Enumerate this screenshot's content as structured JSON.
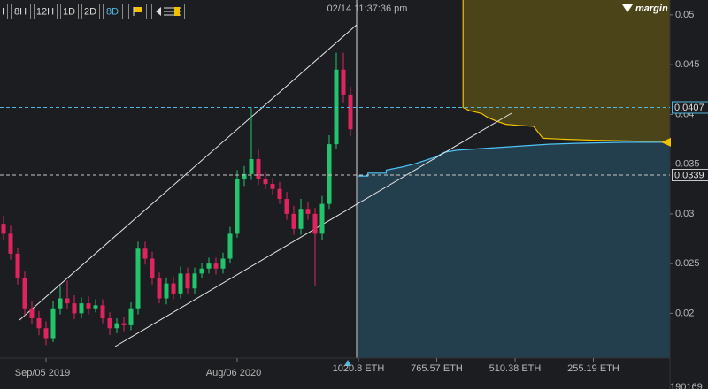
{
  "header": {
    "timestamp": "02/14 11:37:36 pm",
    "brand": "margin"
  },
  "toolbar": {
    "buttons": [
      {
        "label": "H"
      },
      {
        "label": "8H"
      },
      {
        "label": "12H"
      },
      {
        "label": "1D"
      },
      {
        "label": "2D"
      },
      {
        "label": "8D",
        "active": true
      }
    ]
  },
  "footer_value": "190169",
  "chart_data": [
    {
      "type": "candlestick",
      "categories": [
        null,
        null,
        null,
        null,
        null,
        null,
        "Sep/05 2019",
        null,
        null,
        null,
        null,
        null,
        null,
        null,
        null,
        null,
        null,
        null,
        null,
        null,
        null,
        null,
        null,
        null,
        null,
        null,
        null,
        null,
        null,
        null,
        null,
        null,
        null,
        "Aug/06 2020",
        null,
        null,
        null,
        null,
        null,
        null,
        null,
        null,
        null,
        null,
        null,
        null,
        null,
        null,
        null,
        null
      ],
      "open": [
        0.029,
        0.028,
        0.026,
        0.0235,
        0.0205,
        0.0195,
        0.0185,
        0.0175,
        0.0205,
        0.0215,
        0.021,
        0.02,
        0.021,
        0.0205,
        0.0208,
        0.0195,
        0.0185,
        0.019,
        0.0188,
        0.0205,
        0.0265,
        0.0255,
        0.0235,
        0.0215,
        0.023,
        0.022,
        0.024,
        0.0225,
        0.024,
        0.0245,
        0.025,
        0.0245,
        0.0255,
        0.028,
        0.0335,
        0.034,
        0.0355,
        0.0335,
        0.033,
        0.0325,
        0.0315,
        0.03,
        0.0285,
        0.0305,
        0.03,
        0.028,
        0.031,
        0.037,
        0.0445,
        0.042
      ],
      "high": [
        0.0298,
        0.0288,
        0.0266,
        0.0242,
        0.0212,
        0.0202,
        0.0192,
        0.0212,
        0.0228,
        0.0233,
        0.0218,
        0.0216,
        0.0217,
        0.0214,
        0.0214,
        0.0201,
        0.0195,
        0.0196,
        0.0211,
        0.0272,
        0.0272,
        0.0262,
        0.0241,
        0.0236,
        0.0237,
        0.0247,
        0.0246,
        0.0246,
        0.0251,
        0.0256,
        0.0256,
        0.0261,
        0.0287,
        0.0344,
        0.0348,
        0.0407,
        0.0365,
        0.0342,
        0.0336,
        0.0332,
        0.0322,
        0.0308,
        0.0315,
        0.0312,
        0.0306,
        0.0318,
        0.0379,
        0.0462,
        0.0462,
        0.0428
      ],
      "low": [
        0.0274,
        0.0254,
        0.0229,
        0.0198,
        0.0189,
        0.0178,
        0.0168,
        0.0171,
        0.0199,
        0.0204,
        0.0194,
        0.0195,
        0.0199,
        0.0201,
        0.019,
        0.0178,
        0.018,
        0.0182,
        0.0183,
        0.0199,
        0.0249,
        0.0229,
        0.021,
        0.0209,
        0.0214,
        0.0215,
        0.0219,
        0.0219,
        0.0235,
        0.024,
        0.0239,
        0.024,
        0.025,
        0.0276,
        0.0328,
        0.0334,
        0.0329,
        0.0325,
        0.0319,
        0.031,
        0.0294,
        0.0279,
        0.0279,
        0.0294,
        0.0228,
        0.0274,
        0.0305,
        0.0365,
        0.0412,
        0.0378
      ],
      "close": [
        0.028,
        0.026,
        0.0235,
        0.0205,
        0.0195,
        0.0185,
        0.0175,
        0.0205,
        0.0215,
        0.021,
        0.02,
        0.021,
        0.0205,
        0.0208,
        0.0195,
        0.0185,
        0.019,
        0.0188,
        0.0205,
        0.0265,
        0.0255,
        0.0235,
        0.0215,
        0.023,
        0.022,
        0.024,
        0.0225,
        0.024,
        0.0245,
        0.025,
        0.0245,
        0.0255,
        0.028,
        0.0335,
        0.034,
        0.0355,
        0.0335,
        0.033,
        0.0325,
        0.0315,
        0.03,
        0.0285,
        0.0305,
        0.03,
        0.028,
        0.031,
        0.037,
        0.0445,
        0.042,
        0.0385
      ],
      "up_color": "#22c56b",
      "down_color": "#e0245e",
      "ylim": [
        0.0155,
        0.0515
      ],
      "yticks": [
        0.02,
        0.025,
        0.03,
        0.035,
        0.04,
        0.045,
        0.05
      ],
      "price_lines": [
        {
          "value": 0.0407,
          "color": "#4fb8e0"
        },
        {
          "value": 0.0339,
          "color": "#c8c8c8"
        }
      ]
    },
    {
      "type": "depth",
      "xlim": [
        1020.8,
        0
      ],
      "xticks": [
        {
          "value": 1020.8,
          "label": "1020.8 ETH"
        },
        {
          "value": 765.57,
          "label": "765.57 ETH"
        },
        {
          "value": 510.38,
          "label": "510.38 ETH"
        },
        {
          "value": 255.19,
          "label": "255.19 ETH"
        }
      ],
      "bids": {
        "color": "#4fc3f7",
        "fill": "#233e4c",
        "volume": [
          1020.8,
          990,
          990,
          930,
          930,
          880,
          840,
          800,
          770,
          740,
          700,
          600,
          500,
          400,
          300,
          150,
          0
        ],
        "price": [
          0.0338,
          0.0338,
          0.0341,
          0.0341,
          0.0344,
          0.0347,
          0.035,
          0.0354,
          0.0357,
          0.0362,
          0.0364,
          0.0366,
          0.0368,
          0.037,
          0.0371,
          0.0372,
          0.0372
        ]
      },
      "asks": {
        "color": "#f2c200",
        "fill": "#4a4418",
        "volume": [
          680,
          680,
          660,
          620,
          600,
          570,
          540,
          500,
          450,
          420,
          350,
          250,
          100,
          0
        ],
        "price": [
          0.0515,
          0.0407,
          0.0404,
          0.0401,
          0.0397,
          0.0393,
          0.039,
          0.0389,
          0.0388,
          0.0376,
          0.0375,
          0.0374,
          0.0373,
          0.0373
        ]
      }
    }
  ]
}
